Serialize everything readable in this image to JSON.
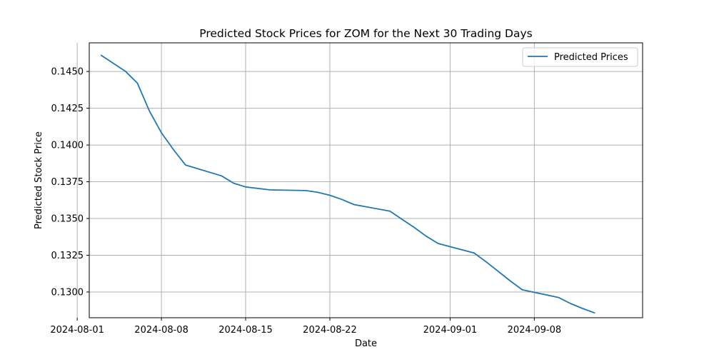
{
  "chart_data": {
    "type": "line",
    "title": "Predicted Stock Prices for ZOM for the Next 30 Trading Days",
    "xlabel": "Date",
    "ylabel": "Predicted Stock Price",
    "xlim": [
      "2024-08-02",
      "2024-09-17"
    ],
    "ylim": [
      0.12825,
      0.14695
    ],
    "grid": true,
    "legend_position": "top-right",
    "x_ticks": [
      "2024-08-01",
      "2024-08-08",
      "2024-08-15",
      "2024-08-22",
      "2024-09-01",
      "2024-09-08"
    ],
    "y_ticks": [
      "0.1300",
      "0.1325",
      "0.1350",
      "0.1375",
      "0.1400",
      "0.1425",
      "0.1450"
    ],
    "series": [
      {
        "name": "Predicted Prices",
        "color": "#1f77b4",
        "x": [
          "2024-08-03",
          "2024-08-05",
          "2024-08-06",
          "2024-08-07",
          "2024-08-08",
          "2024-08-09",
          "2024-08-10",
          "2024-08-13",
          "2024-08-14",
          "2024-08-15",
          "2024-08-17",
          "2024-08-20",
          "2024-08-21",
          "2024-08-22",
          "2024-08-23",
          "2024-08-24",
          "2024-08-27",
          "2024-08-28",
          "2024-08-29",
          "2024-08-30",
          "2024-08-31",
          "2024-09-03",
          "2024-09-04",
          "2024-09-05",
          "2024-09-06",
          "2024-09-07",
          "2024-09-10",
          "2024-09-11",
          "2024-09-12",
          "2024-09-13"
        ],
        "values": [
          0.1461,
          0.14502,
          0.14421,
          0.14232,
          0.14083,
          0.13969,
          0.13864,
          0.1379,
          0.1374,
          0.13715,
          0.13695,
          0.1369,
          0.13678,
          0.13658,
          0.1363,
          0.13595,
          0.1355,
          0.13495,
          0.1344,
          0.1338,
          0.1333,
          0.13265,
          0.13205,
          0.1314,
          0.13075,
          0.13015,
          0.12963,
          0.12922,
          0.12888,
          0.12858
        ]
      }
    ]
  }
}
